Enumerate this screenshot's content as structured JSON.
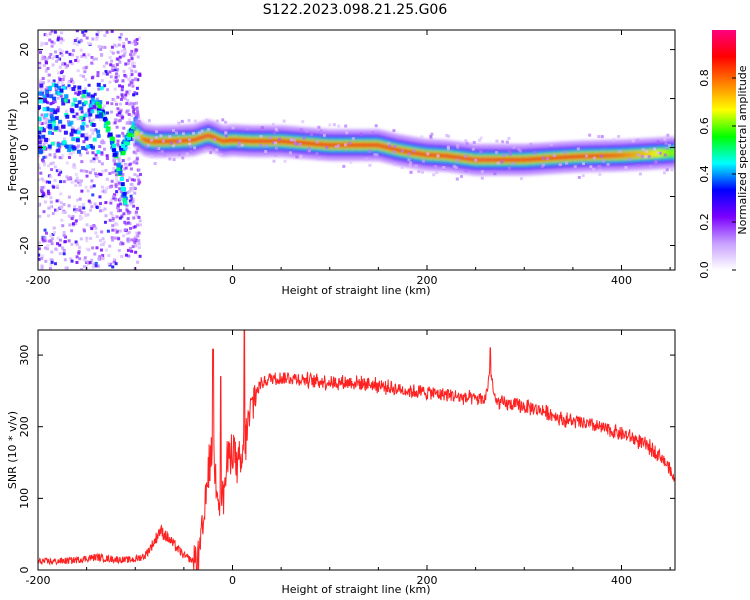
{
  "title": "S122.2023.098.21.25.G06",
  "chart_data": [
    {
      "type": "heatmap",
      "xlabel": "Height of straight line (km)",
      "ylabel": "Frequency (Hz)",
      "xlim": [
        -200,
        455
      ],
      "ylim": [
        -25,
        24
      ],
      "xticks": [
        -200,
        0,
        200,
        400
      ],
      "yticks": [
        -20,
        -10,
        0,
        10,
        20
      ],
      "colorbar": {
        "label": "Normalized spectral amplitude",
        "range": [
          0,
          1
        ],
        "ticks": [
          "0.0",
          "0.2",
          "0.4",
          "0.6",
          "0.8"
        ],
        "colors": [
          "#ffffff",
          "#c8a0ff",
          "#7a00ff",
          "#0000ff",
          "#00ffff",
          "#00ff00",
          "#ffff00",
          "#ff8000",
          "#ff0000",
          "#ff0080"
        ]
      },
      "ridge": {
        "x": [
          -100,
          -90,
          -80,
          -60,
          -40,
          -25,
          -20,
          -10,
          0,
          20,
          50,
          100,
          150,
          170,
          190,
          200,
          220,
          250,
          300,
          340,
          360,
          400,
          455
        ],
        "y": [
          3,
          1.5,
          1.2,
          1.3,
          1.5,
          2.5,
          2.2,
          1.3,
          1.5,
          1.3,
          1.3,
          0.5,
          0.5,
          -0.5,
          -1.2,
          -1.5,
          -1.7,
          -2.5,
          -2.5,
          -2,
          -1.8,
          -1.6,
          -1
        ],
        "peak_amplitude": [
          0.6,
          0.85,
          0.85,
          0.9,
          0.9,
          0.95,
          0.9,
          0.85,
          0.9,
          0.9,
          0.9,
          0.9,
          0.9,
          0.9,
          0.9,
          0.9,
          0.9,
          0.95,
          0.9,
          0.9,
          0.9,
          0.8,
          0.6
        ]
      },
      "streak": {
        "x": [
          -110,
          -115,
          -120,
          -125,
          -130,
          -135,
          -140
        ],
        "y": [
          -12,
          -6,
          -2,
          2,
          5,
          7,
          9
        ]
      },
      "streak2": {
        "x": [
          -100,
          -105,
          -110,
          -115
        ],
        "y": [
          5,
          3,
          1,
          -1
        ]
      }
    },
    {
      "type": "line",
      "xlabel": "Height of straight line (km)",
      "ylabel": "SNR (10 * v/v)",
      "xlim": [
        -200,
        455
      ],
      "ylim": [
        0,
        335
      ],
      "xticks": [
        -200,
        0,
        200,
        400
      ],
      "yticks": [
        0,
        100,
        200,
        300
      ],
      "series": [
        {
          "color": "#ff2020",
          "x": [
            -200,
            -180,
            -160,
            -140,
            -130,
            -120,
            -110,
            -100,
            -90,
            -80,
            -75,
            -70,
            -60,
            -50,
            -40,
            -35,
            -30,
            -25,
            -20,
            -15,
            -10,
            -5,
            0,
            5,
            10,
            15,
            20,
            25,
            30,
            40,
            60,
            80,
            100,
            120,
            140,
            160,
            180,
            200,
            220,
            240,
            260,
            265,
            270,
            280,
            300,
            320,
            340,
            360,
            380,
            400,
            410,
            420,
            430,
            440,
            450,
            455
          ],
          "y": [
            12,
            12,
            14,
            18,
            16,
            15,
            14,
            15,
            20,
            40,
            55,
            50,
            35,
            20,
            12,
            15,
            60,
            140,
            170,
            110,
            100,
            150,
            180,
            140,
            150,
            195,
            230,
            250,
            262,
            268,
            268,
            265,
            262,
            262,
            260,
            255,
            250,
            248,
            245,
            240,
            238,
            280,
            235,
            232,
            228,
            222,
            210,
            205,
            198,
            190,
            185,
            178,
            170,
            160,
            140,
            120
          ]
        }
      ],
      "spikes": [
        {
          "x": 265,
          "y": 310
        },
        {
          "x": 12,
          "y": 335
        },
        {
          "x": -20,
          "y": 308
        },
        {
          "x": -12,
          "y": 270
        }
      ]
    }
  ]
}
